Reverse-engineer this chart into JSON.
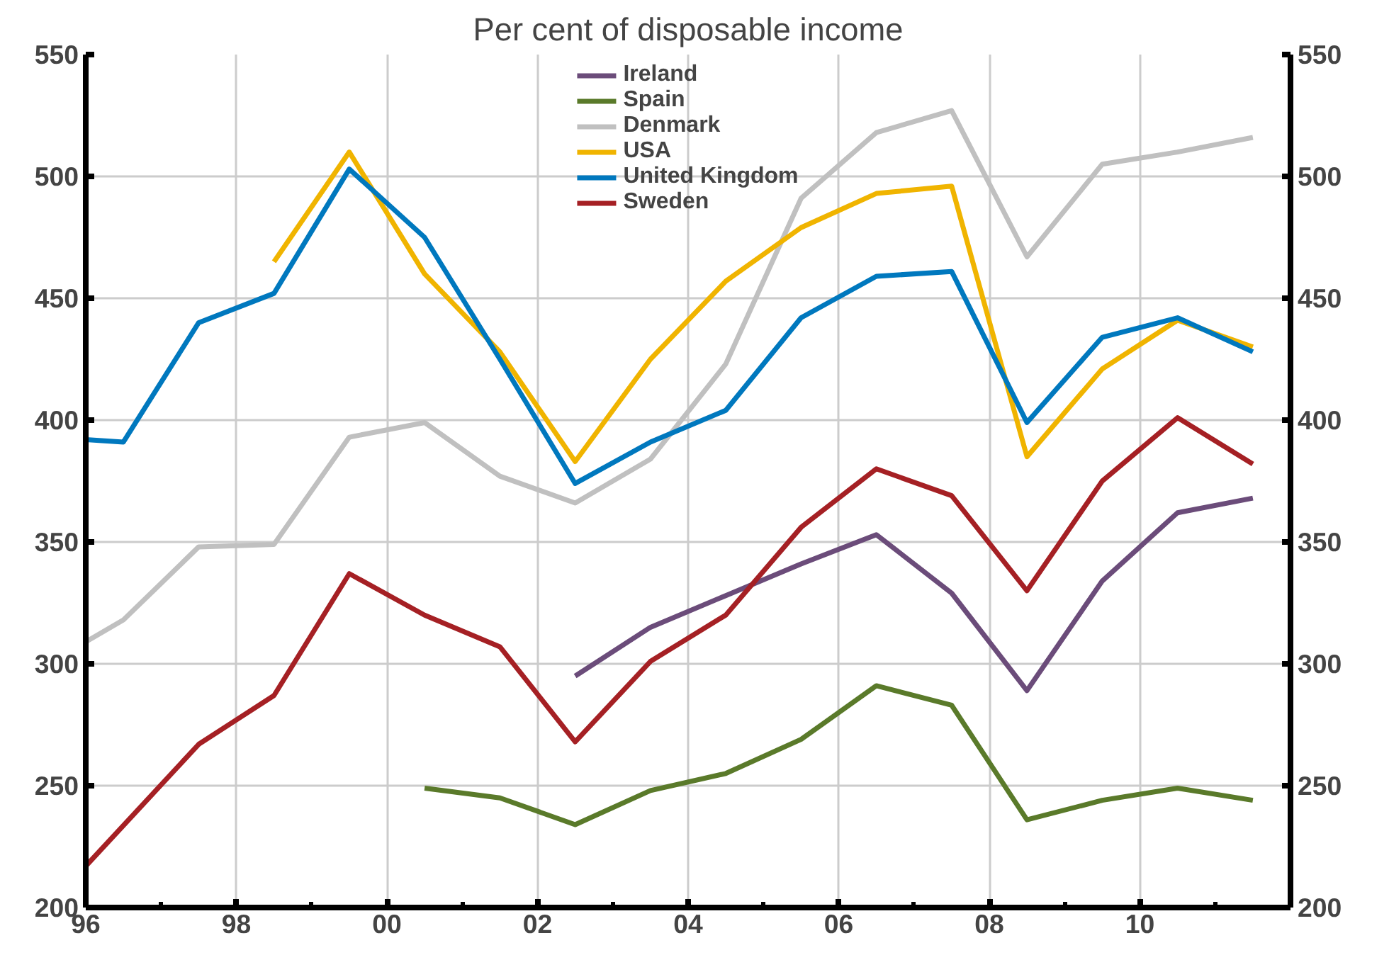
{
  "chart_data": {
    "type": "line",
    "title": "Per cent of disposable income",
    "series": [
      {
        "name": "Ireland",
        "color": "#6b4c7a",
        "x": [
          2002.5,
          2003.5,
          2004.5,
          2005.5,
          2006.5,
          2007.5,
          2008.5,
          2009.5,
          2010.5,
          2011.5
        ],
        "values": [
          295,
          315,
          328,
          341,
          353,
          329,
          289,
          334,
          362,
          368
        ]
      },
      {
        "name": "Spain",
        "color": "#5a7a2a",
        "x": [
          2000.5,
          2001.5,
          2002.5,
          2003.5,
          2004.5,
          2005.5,
          2006.5,
          2007.5,
          2008.5,
          2009.5,
          2010.5,
          2011.5
        ],
        "values": [
          249,
          245,
          234,
          248,
          255,
          269,
          291,
          283,
          236,
          244,
          249,
          244
        ]
      },
      {
        "name": "Denmark",
        "color": "#c0c0c0",
        "x": [
          1996,
          1996.5,
          1997.5,
          1998.5,
          1999.5,
          2000.5,
          2001.5,
          2002.5,
          2003.5,
          2004.5,
          2005.5,
          2006.5,
          2007.5,
          2008.5,
          2009.5,
          2010.5,
          2011.5
        ],
        "values": [
          309,
          318,
          348,
          349,
          393,
          399,
          377,
          366,
          384,
          423,
          491,
          518,
          527,
          467,
          505,
          510,
          516
        ]
      },
      {
        "name": "USA",
        "color": "#f0b400",
        "x": [
          1998.5,
          1999.5,
          2000.5,
          2001.5,
          2002.5,
          2003.5,
          2004.5,
          2005.5,
          2006.5,
          2007.5,
          2008.5,
          2009.5,
          2010.5,
          2011.5
        ],
        "values": [
          465,
          510,
          460,
          428,
          383,
          425,
          457,
          479,
          493,
          496,
          385,
          421,
          441,
          430
        ]
      },
      {
        "name": "United Kingdom",
        "color": "#0078be",
        "x": [
          1996,
          1996.5,
          1997.5,
          1998.5,
          1999.5,
          2000.5,
          2001.5,
          2002.5,
          2003.5,
          2004.5,
          2005.5,
          2006.5,
          2007.5,
          2008.5,
          2009.5,
          2010.5,
          2011.5
        ],
        "values": [
          392,
          391,
          440,
          452,
          503,
          475,
          425,
          374,
          391,
          404,
          442,
          459,
          461,
          399,
          434,
          442,
          428
        ]
      },
      {
        "name": "Sweden",
        "color": "#a52024",
        "x": [
          1996,
          1997.5,
          1998.5,
          1999.5,
          2000.5,
          2001.5,
          2002.5,
          2003.5,
          2004.5,
          2005.5,
          2006.5,
          2007.5,
          2008.5,
          2009.5,
          2010.5,
          2011.5
        ],
        "values": [
          217,
          267,
          287,
          337,
          320,
          307,
          268,
          301,
          320,
          356,
          380,
          369,
          330,
          375,
          401,
          382
        ]
      }
    ],
    "xlim": [
      1996,
      2012
    ],
    "xticks": [
      {
        "value": 1996,
        "label": "96"
      },
      {
        "value": 1997,
        "label": null
      },
      {
        "value": 1998,
        "label": "98"
      },
      {
        "value": 1999,
        "label": null
      },
      {
        "value": 2000,
        "label": "00"
      },
      {
        "value": 2001,
        "label": null
      },
      {
        "value": 2002,
        "label": "02"
      },
      {
        "value": 2003,
        "label": null
      },
      {
        "value": 2004,
        "label": "04"
      },
      {
        "value": 2005,
        "label": null
      },
      {
        "value": 2006,
        "label": "06"
      },
      {
        "value": 2007,
        "label": null
      },
      {
        "value": 2008,
        "label": "08"
      },
      {
        "value": 2009,
        "label": null
      },
      {
        "value": 2010,
        "label": "10"
      },
      {
        "value": 2011,
        "label": null
      },
      {
        "value": 2012,
        "label": null
      }
    ],
    "ylim": [
      200,
      550
    ],
    "yticks": [
      200,
      250,
      300,
      350,
      400,
      450,
      500,
      550
    ],
    "y2lim": [
      200,
      550
    ],
    "y2ticks": [
      200,
      250,
      300,
      350,
      400,
      450,
      500,
      550
    ],
    "grid": true,
    "legend": "top",
    "marker": "none",
    "line_style": "solid"
  }
}
